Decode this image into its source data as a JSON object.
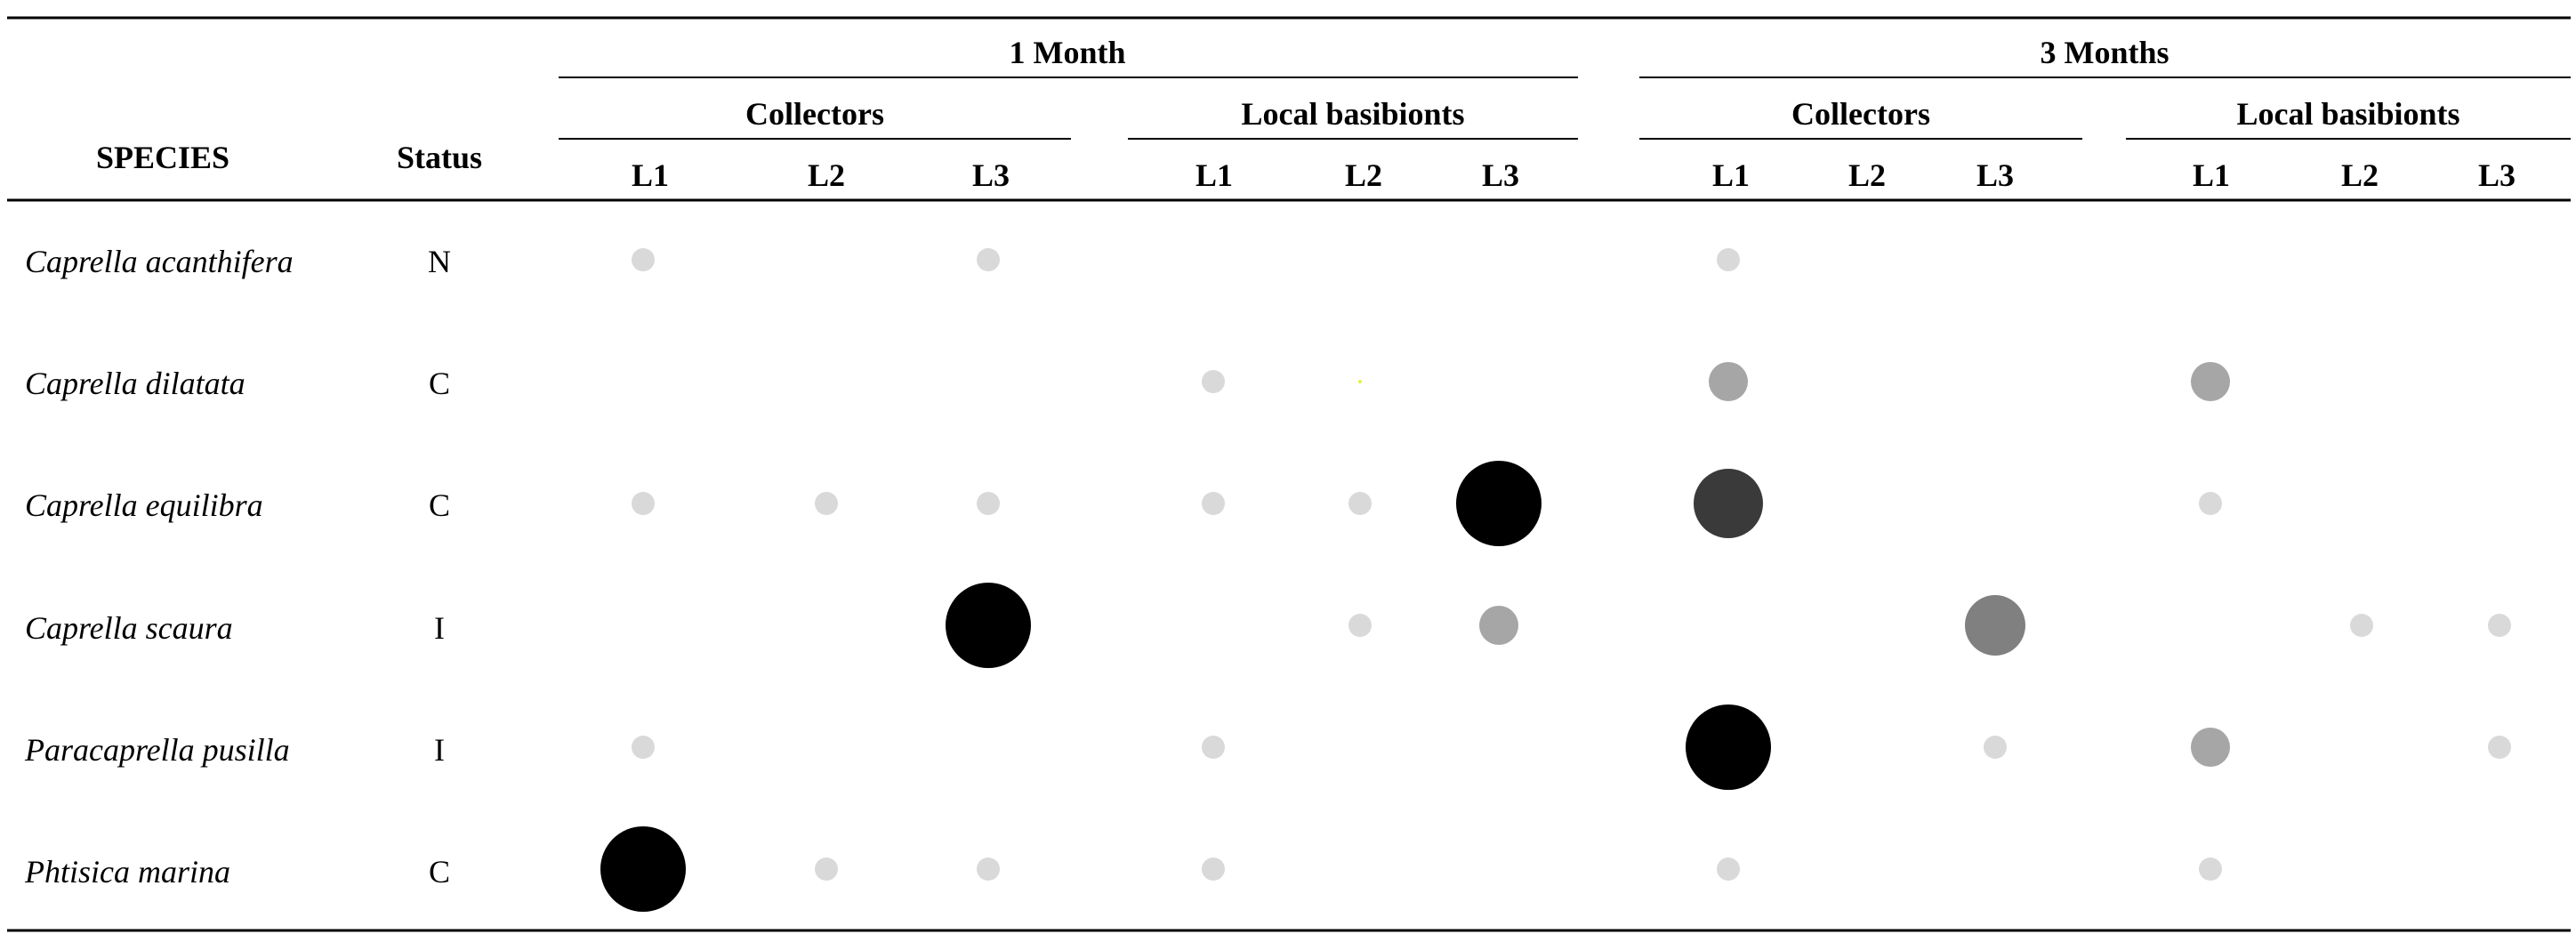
{
  "chart_data": {
    "type": "bubble-table",
    "headers": {
      "species": "SPECIES",
      "status": "Status",
      "periods": [
        {
          "label": "1 Month",
          "groups": [
            {
              "label": "Collectors",
              "sites": [
                "L1",
                "L2",
                "L3"
              ]
            },
            {
              "label": "Local basibionts",
              "sites": [
                "L1",
                "L2",
                "L3"
              ]
            }
          ]
        },
        {
          "label": "3 Months",
          "groups": [
            {
              "label": "Collectors",
              "sites": [
                "L1",
                "L2",
                "L3"
              ]
            },
            {
              "label": "Local basibionts",
              "sites": [
                "L1",
                "L2",
                "L3"
              ]
            }
          ]
        }
      ]
    },
    "rows": [
      {
        "species": "Caprella acanthifera",
        "status": "N",
        "levels": [
          1,
          0,
          1,
          0,
          0,
          0,
          1,
          0,
          0,
          0,
          0,
          0
        ]
      },
      {
        "species": "Caprella dilatata",
        "status": "C",
        "levels": [
          0,
          0,
          0,
          1,
          0.3,
          0,
          2,
          0,
          0,
          2,
          0,
          0
        ]
      },
      {
        "species": "Caprella equilibra",
        "status": "C",
        "levels": [
          1,
          1,
          1,
          1,
          1,
          5,
          4,
          0,
          0,
          1,
          0,
          0
        ]
      },
      {
        "species": "Caprella scaura",
        "status": "I",
        "levels": [
          0,
          0,
          5,
          0,
          1,
          2,
          0,
          0,
          3,
          0,
          1,
          1
        ]
      },
      {
        "species": "Paracaprella pusilla",
        "status": "I",
        "levels": [
          1,
          0,
          0,
          1,
          0,
          0,
          5,
          0,
          1,
          2,
          0,
          1
        ]
      },
      {
        "species": "Phtisica marina",
        "status": "C",
        "levels": [
          5,
          1,
          1,
          1,
          0,
          0,
          1,
          0,
          0,
          1,
          0,
          0
        ]
      }
    ],
    "level_scale": {
      "1": {
        "color": "#d9d9d9"
      },
      "2": {
        "color": "#a6a6a6"
      },
      "3": {
        "color": "#808080"
      },
      "4": {
        "color": "#3a3a3a"
      },
      "5": {
        "color": "#000000"
      },
      "0.3": {
        "color": "#e8f04a"
      }
    }
  }
}
